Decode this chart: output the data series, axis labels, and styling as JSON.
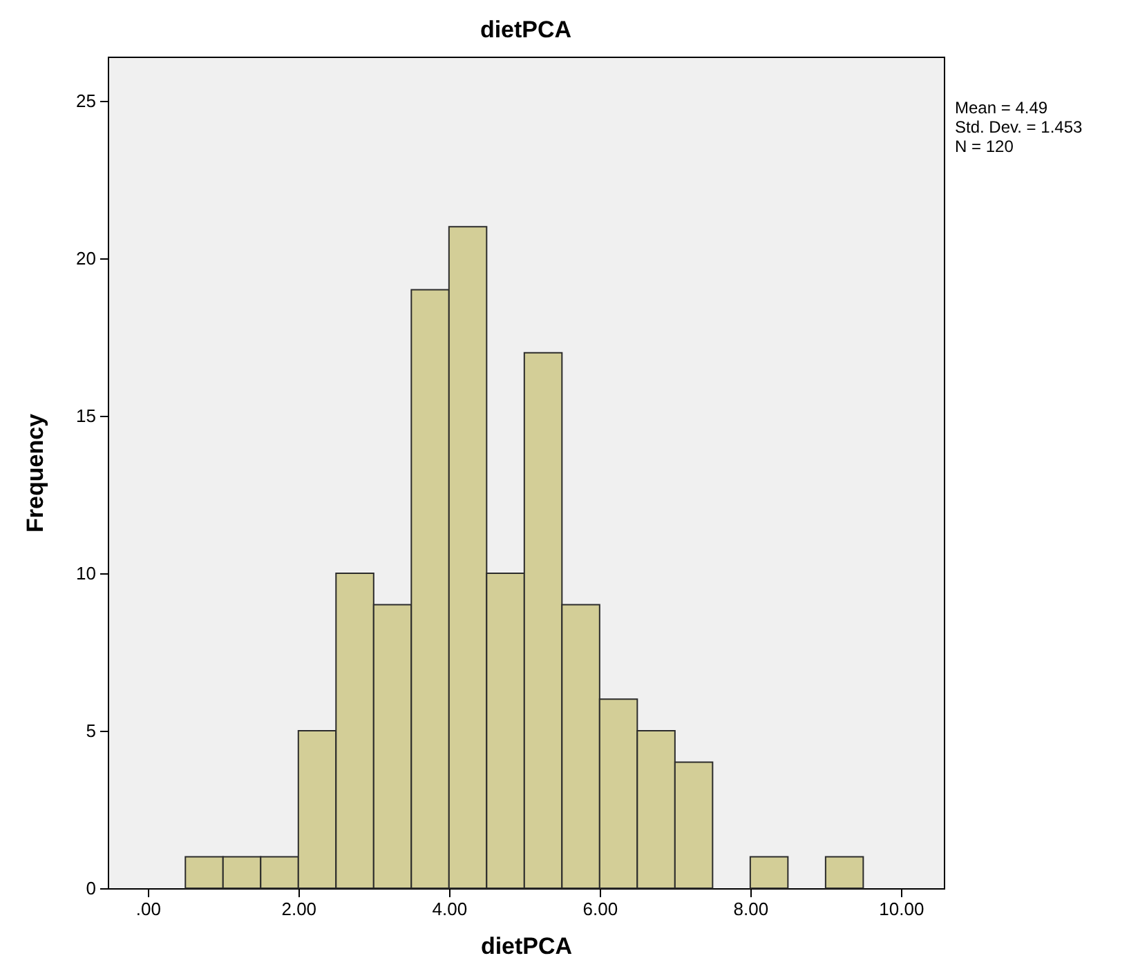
{
  "chart_data": {
    "type": "histogram",
    "title": "dietPCA",
    "xlabel": "dietPCA",
    "ylabel": "Frequency",
    "bins": [
      0.5,
      1.0,
      1.5,
      2.0,
      2.5,
      3.0,
      3.5,
      4.0,
      4.5,
      5.0,
      5.5,
      6.0,
      6.5,
      7.0,
      7.5,
      8.0,
      8.5,
      9.0,
      9.5
    ],
    "values": [
      1,
      1,
      1,
      5,
      10,
      9,
      19,
      21,
      10,
      17,
      9,
      6,
      5,
      4,
      0,
      1,
      0,
      1
    ],
    "color": "#d3ce97",
    "xlim": [
      -0.53,
      10.57
    ],
    "xticks": [
      {
        "value": 0,
        "label": ".00"
      },
      {
        "value": 2,
        "label": "2.00"
      },
      {
        "value": 4,
        "label": "4.00"
      },
      {
        "value": 6,
        "label": "6.00"
      },
      {
        "value": 8,
        "label": "8.00"
      },
      {
        "value": 10,
        "label": "10.00"
      }
    ],
    "ylim": [
      0,
      26.4
    ],
    "yticks": [
      0,
      5,
      10,
      15,
      20,
      25
    ],
    "annotations": [
      "Mean = 4.49",
      "Std. Dev. = 1.453",
      "N = 120"
    ]
  }
}
